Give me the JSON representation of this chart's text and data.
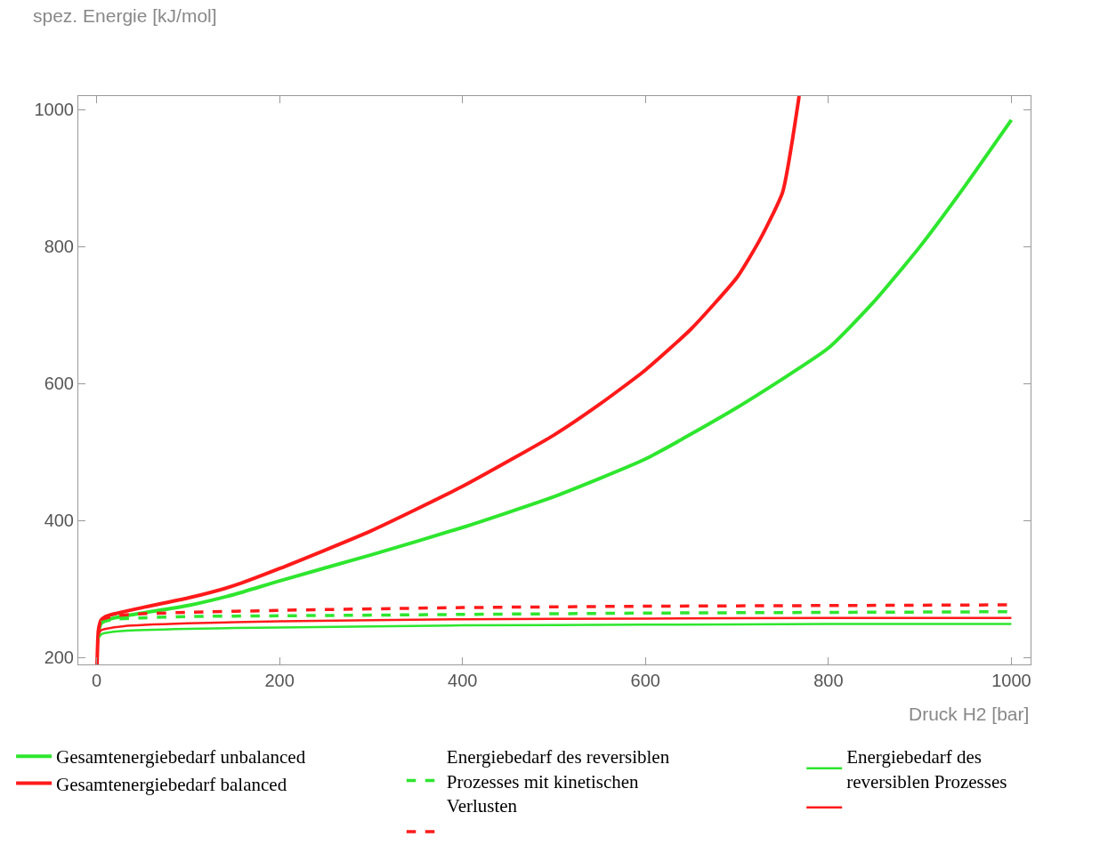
{
  "chart_data": {
    "type": "line",
    "xlabel": "Druck H2 [bar]",
    "ylabel": "spez. Energie [kJ/mol]",
    "xlim": [
      -20,
      1021
    ],
    "ylim": [
      190,
      1020
    ],
    "xticks": [
      0,
      200,
      400,
      600,
      800,
      1000
    ],
    "yticks": [
      200,
      400,
      600,
      800,
      1000
    ],
    "legend": "bottom",
    "marker": "none",
    "series": [
      {
        "name": "Gesamtenergiebedarf unbalanced",
        "color": "#2ee62e",
        "line_style": "solid",
        "x": [
          2,
          5,
          10,
          20,
          50,
          100,
          150,
          200,
          300,
          400,
          500,
          600,
          700,
          800,
          850,
          900,
          950,
          1000
        ],
        "values": [
          238,
          250,
          254,
          258,
          265,
          276,
          292,
          312,
          350,
          390,
          435,
          490,
          565,
          652,
          720,
          800,
          890,
          985
        ]
      },
      {
        "name": "Gesamtenergiebedarf balanced",
        "color": "#ff1a1a",
        "line_style": "solid",
        "x": [
          0.5,
          2,
          5,
          10,
          20,
          50,
          100,
          150,
          200,
          300,
          400,
          500,
          550,
          600,
          650,
          700,
          725,
          750,
          768
        ],
        "values": [
          190,
          240,
          255,
          260,
          264,
          273,
          287,
          305,
          330,
          385,
          450,
          525,
          570,
          620,
          680,
          755,
          810,
          880,
          1020
        ]
      },
      {
        "name": "Energiebedarf des reversiblen Prozesses mit kinetischen Verlusten",
        "color": "#2ee62e",
        "line_style": "dashed",
        "x": [
          5,
          20,
          50,
          100,
          200,
          400,
          600,
          800,
          1000
        ],
        "values": [
          252,
          256,
          258,
          260,
          261,
          263,
          265,
          266,
          267
        ]
      },
      {
        "color": "#ff1a1a",
        "line_style": "dashed",
        "x": [
          5,
          20,
          50,
          100,
          200,
          400,
          600,
          800,
          1000
        ],
        "values": [
          256,
          261,
          264,
          266,
          269,
          273,
          275,
          276,
          277
        ]
      },
      {
        "name": "Energiebedarf des reversiblen Prozesses",
        "color": "#2ee62e",
        "line_style": "solid",
        "x": [
          2,
          5,
          10,
          30,
          100,
          200,
          400,
          600,
          800,
          1000
        ],
        "values": [
          228,
          234,
          236,
          239,
          242,
          244,
          247,
          248,
          249,
          249
        ]
      },
      {
        "color": "#ff1a1a",
        "line_style": "solid",
        "x": [
          0.5,
          2,
          5,
          10,
          30,
          100,
          200,
          400,
          600,
          800,
          1000
        ],
        "values": [
          190,
          233,
          240,
          242,
          246,
          250,
          253,
          256,
          257,
          258,
          258
        ]
      }
    ]
  }
}
